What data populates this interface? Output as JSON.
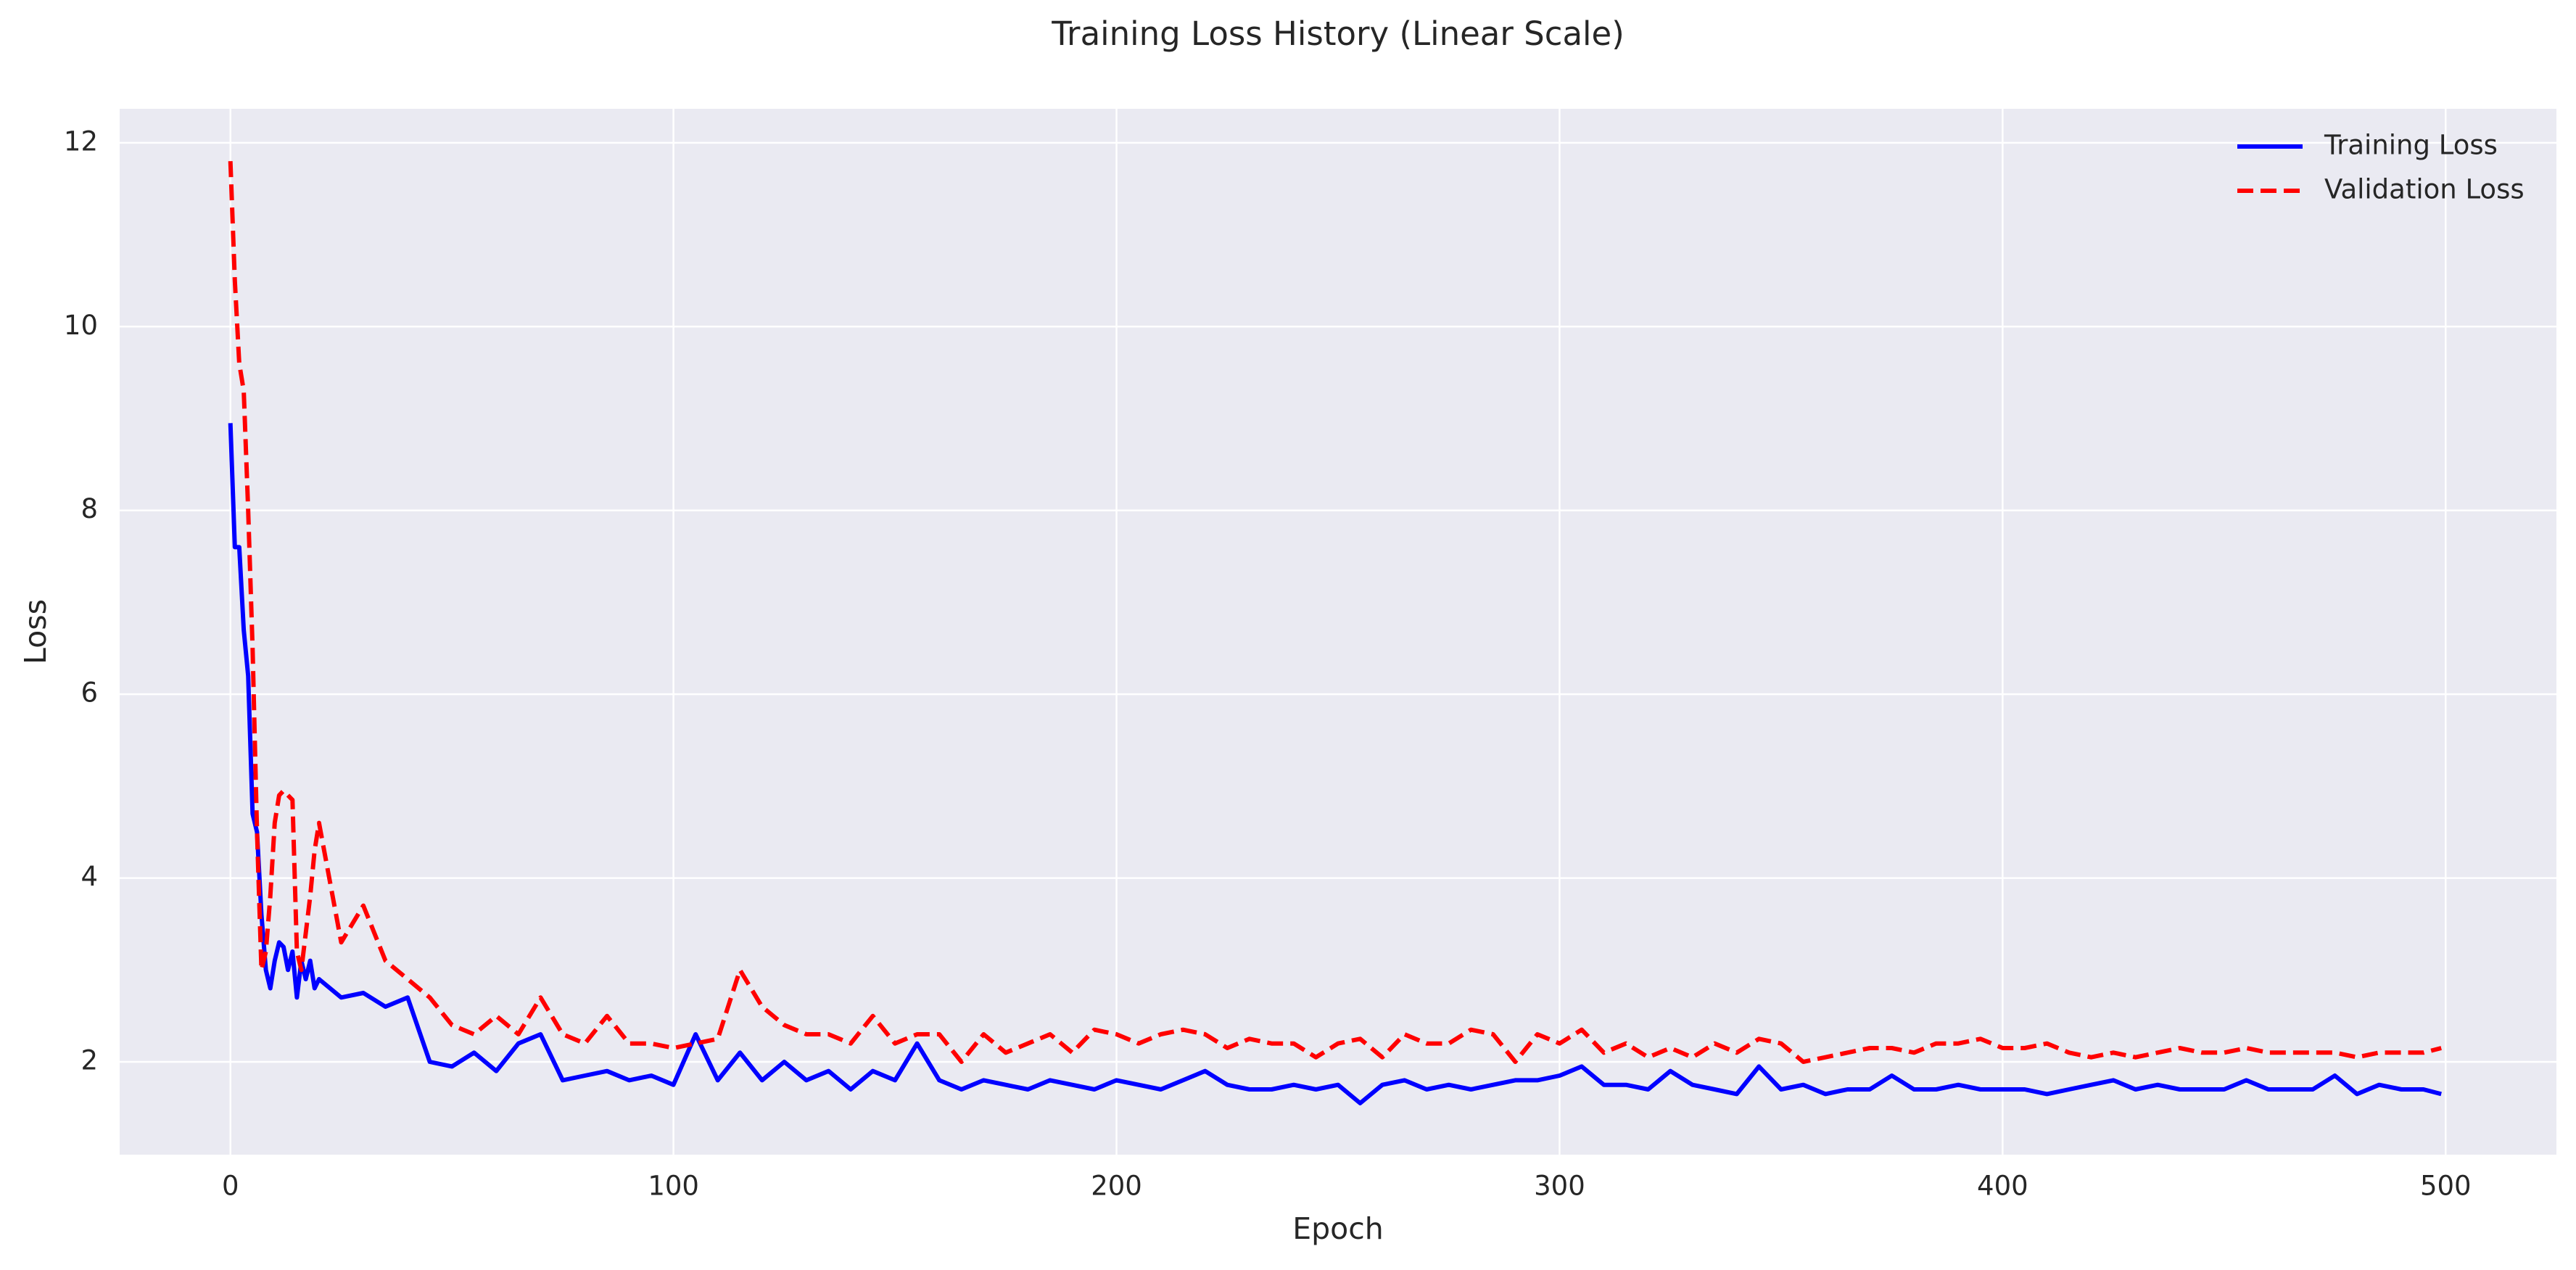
{
  "chart_data": {
    "type": "line",
    "title": "Training Loss History (Linear Scale)",
    "xlabel": "Epoch",
    "ylabel": "Loss",
    "x": [
      0,
      1,
      2,
      3,
      4,
      5,
      6,
      7,
      8,
      9,
      10,
      11,
      12,
      13,
      14,
      15,
      16,
      17,
      18,
      19,
      20,
      25,
      30,
      35,
      40,
      45,
      50,
      55,
      60,
      65,
      70,
      75,
      80,
      85,
      90,
      95,
      100,
      105,
      110,
      115,
      120,
      125,
      130,
      135,
      140,
      145,
      150,
      155,
      160,
      165,
      170,
      175,
      180,
      185,
      190,
      195,
      200,
      205,
      210,
      215,
      220,
      225,
      230,
      235,
      240,
      245,
      250,
      255,
      260,
      265,
      270,
      275,
      280,
      285,
      290,
      295,
      300,
      305,
      310,
      315,
      320,
      325,
      330,
      335,
      340,
      345,
      350,
      355,
      360,
      365,
      370,
      375,
      380,
      385,
      390,
      395,
      400,
      405,
      410,
      415,
      420,
      425,
      430,
      435,
      440,
      445,
      450,
      455,
      460,
      465,
      470,
      475,
      480,
      485,
      490,
      495,
      499
    ],
    "series": [
      {
        "name": "Training Loss",
        "color": "#0000ff",
        "linestyle": "solid",
        "values": [
          8.95,
          7.6,
          7.6,
          6.7,
          6.2,
          4.7,
          4.5,
          3.6,
          3.0,
          2.8,
          3.1,
          3.3,
          3.25,
          3.0,
          3.2,
          2.7,
          3.1,
          2.9,
          3.1,
          2.8,
          2.9,
          2.7,
          2.75,
          2.6,
          2.7,
          2.0,
          1.95,
          2.1,
          1.9,
          2.2,
          2.3,
          1.8,
          1.85,
          1.9,
          1.8,
          1.85,
          1.75,
          2.3,
          1.8,
          2.1,
          1.8,
          2.0,
          1.8,
          1.9,
          1.7,
          1.9,
          1.8,
          2.2,
          1.8,
          1.7,
          1.8,
          1.75,
          1.7,
          1.8,
          1.75,
          1.7,
          1.8,
          1.75,
          1.7,
          1.8,
          1.9,
          1.75,
          1.7,
          1.7,
          1.75,
          1.7,
          1.75,
          1.55,
          1.75,
          1.8,
          1.7,
          1.75,
          1.7,
          1.75,
          1.8,
          1.8,
          1.85,
          1.95,
          1.75,
          1.75,
          1.7,
          1.9,
          1.75,
          1.7,
          1.65,
          1.95,
          1.7,
          1.75,
          1.65,
          1.7,
          1.7,
          1.85,
          1.7,
          1.7,
          1.75,
          1.7,
          1.7,
          1.7,
          1.65,
          1.7,
          1.75,
          1.8,
          1.7,
          1.75,
          1.7,
          1.7,
          1.7,
          1.8,
          1.7,
          1.7,
          1.7,
          1.85,
          1.65,
          1.75,
          1.7,
          1.7,
          1.65
        ]
      },
      {
        "name": "Validation Loss",
        "color": "#ff0000",
        "linestyle": "dashed",
        "values": [
          11.8,
          10.5,
          9.6,
          9.3,
          8.0,
          6.5,
          4.5,
          3.0,
          3.2,
          3.8,
          4.6,
          4.9,
          4.95,
          4.9,
          4.85,
          3.2,
          3.0,
          3.4,
          3.8,
          4.3,
          4.6,
          3.3,
          3.7,
          3.1,
          2.9,
          2.7,
          2.4,
          2.3,
          2.5,
          2.3,
          2.7,
          2.3,
          2.2,
          2.5,
          2.2,
          2.2,
          2.15,
          2.2,
          2.25,
          3.0,
          2.6,
          2.4,
          2.3,
          2.3,
          2.2,
          2.5,
          2.2,
          2.3,
          2.3,
          2.0,
          2.3,
          2.1,
          2.2,
          2.3,
          2.1,
          2.35,
          2.3,
          2.2,
          2.3,
          2.35,
          2.3,
          2.15,
          2.25,
          2.2,
          2.2,
          2.05,
          2.2,
          2.25,
          2.05,
          2.3,
          2.2,
          2.2,
          2.35,
          2.3,
          2.0,
          2.3,
          2.2,
          2.35,
          2.1,
          2.2,
          2.05,
          2.15,
          2.05,
          2.2,
          2.1,
          2.25,
          2.2,
          2.0,
          2.05,
          2.1,
          2.15,
          2.15,
          2.1,
          2.2,
          2.2,
          2.25,
          2.15,
          2.15,
          2.2,
          2.1,
          2.05,
          2.1,
          2.05,
          2.1,
          2.15,
          2.1,
          2.1,
          2.15,
          2.1,
          2.1,
          2.1,
          2.1,
          2.05,
          2.1,
          2.1,
          2.1,
          2.15
        ]
      }
    ],
    "xlim": [
      -25,
      525
    ],
    "ylim": [
      0.99,
      12.37
    ],
    "xticks": [
      0,
      100,
      200,
      300,
      400,
      500
    ],
    "yticks": [
      2,
      4,
      6,
      8,
      10,
      12
    ],
    "grid": true,
    "legend": "upper right"
  }
}
